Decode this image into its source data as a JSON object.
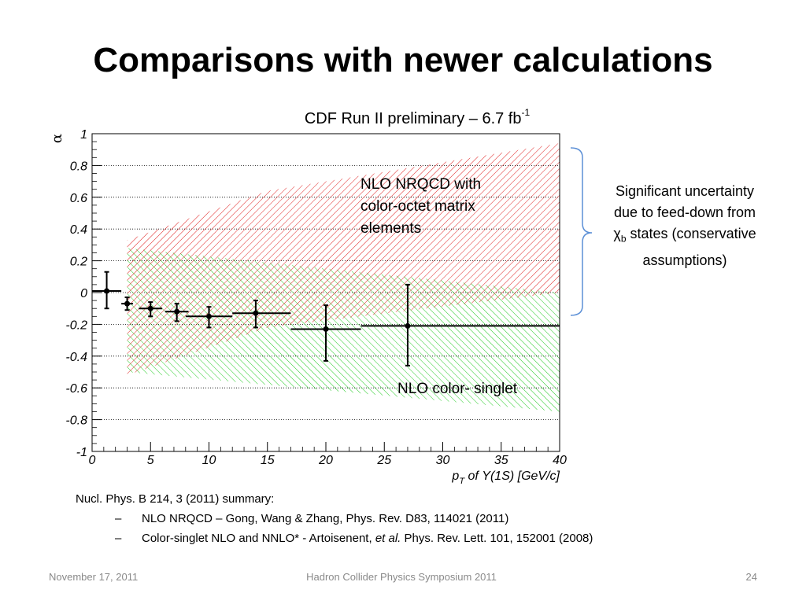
{
  "slide": {
    "title": "Comparisons with newer calculations",
    "footer_date": "November 17, 2011",
    "footer_conference": "Hadron Collider Physics Symposium  2011",
    "page_number": "24"
  },
  "plot_title": {
    "text": "CDF Run II preliminary – 6.7 fb",
    "superscript": "-1"
  },
  "side_note": {
    "line1": "Significant uncertainty due to feed-down from χ",
    "subscript": "b",
    "line2": "states (conservative assumptions)"
  },
  "references": {
    "intro": "Nucl. Phys. B 214, 3 (2011) summary:",
    "items": [
      {
        "dash": "–",
        "text": "NLO NRQCD – Gong, Wang & Zhang, Phys. Rev. D83, 114021 (2011)"
      },
      {
        "dash": "–",
        "parts": [
          "Color-singlet NLO and NNLO* - Artoisenent, ",
          "et al.",
          " Phys. Rev. Lett. 101, 152001 (2008)"
        ]
      }
    ]
  },
  "colors": {
    "octet_band": "#e02020",
    "singlet_band": "#22cc22",
    "bracket": "#5b8fd6",
    "grid": "#000000"
  },
  "chart_data": {
    "type": "scatter",
    "ylabel": "α",
    "xlabel_parts": [
      "p",
      "T",
      " of Υ(1S) [GeV/c]"
    ],
    "xlim": [
      0,
      40
    ],
    "ylim": [
      -1,
      1
    ],
    "x_ticks": [
      0,
      5,
      10,
      15,
      20,
      25,
      30,
      35,
      40
    ],
    "x_tick_labels": [
      "0",
      "5",
      "10",
      "15",
      "20",
      "25",
      "30",
      "35",
      "40"
    ],
    "y_ticks": [
      -1,
      -0.8,
      -0.6,
      -0.4,
      -0.2,
      0,
      0.2,
      0.4,
      0.6,
      0.8,
      1
    ],
    "y_tick_labels": [
      "-1",
      "-0.8",
      "-0.6",
      "-0.4",
      "-0.2",
      "0",
      "0.2",
      "0.4",
      "0.6",
      "0.8",
      "1"
    ],
    "grid_y": true,
    "bands": [
      {
        "name": "NLO NRQCD with color-octet matrix elements",
        "label_lines": [
          "NLO NRQCD with",
          "color-octet matrix",
          "elements"
        ],
        "upper": [
          [
            3,
            0.33
          ],
          [
            15,
            0.64
          ],
          [
            40,
            0.94
          ]
        ],
        "lower": [
          [
            3,
            -0.52
          ],
          [
            15,
            -0.22
          ],
          [
            40,
            0.0
          ]
        ]
      },
      {
        "name": "NLO color- singlet",
        "label_lines": [
          "NLO color- singlet"
        ],
        "upper": [
          [
            3,
            0.28
          ],
          [
            40,
            0.0
          ]
        ],
        "lower": [
          [
            3,
            -0.5
          ],
          [
            40,
            -0.75
          ]
        ]
      }
    ],
    "points": [
      {
        "x": 1.25,
        "xerr": [
          1.25,
          1.25
        ],
        "y": 0.01,
        "yerr": [
          0.11,
          0.12
        ]
      },
      {
        "x": 3.0,
        "xerr": [
          0.5,
          0.5
        ],
        "y": -0.07,
        "yerr": [
          0.04,
          0.04
        ]
      },
      {
        "x": 5.0,
        "xerr": [
          1.0,
          1.0
        ],
        "y": -0.1,
        "yerr": [
          0.05,
          0.04
        ]
      },
      {
        "x": 7.25,
        "xerr": [
          1.0,
          1.0
        ],
        "y": -0.12,
        "yerr": [
          0.06,
          0.05
        ]
      },
      {
        "x": 10.0,
        "xerr": [
          2.0,
          2.0
        ],
        "y": -0.15,
        "yerr": [
          0.07,
          0.06
        ]
      },
      {
        "x": 14.0,
        "xerr": [
          2.0,
          3.0
        ],
        "y": -0.13,
        "yerr": [
          0.09,
          0.08
        ]
      },
      {
        "x": 20.0,
        "xerr": [
          3.0,
          3.0
        ],
        "y": -0.23,
        "yerr": [
          0.2,
          0.15
        ]
      },
      {
        "x": 27.0,
        "xerr": [
          4.0,
          13.0
        ],
        "y": -0.21,
        "yerr": [
          0.25,
          0.26
        ]
      }
    ]
  }
}
